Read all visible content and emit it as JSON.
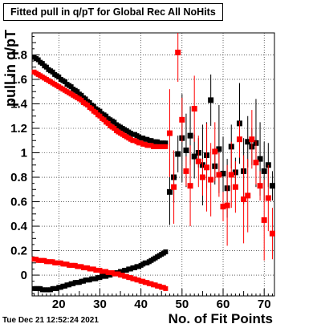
{
  "header": {
    "title": "Fitted pull in q/pT for Global Rec All NoHits",
    "timestamp": "Tue Dec 21 12:52:24 2021"
  },
  "chart_data": {
    "type": "scatter",
    "title": "Fitted pull in q/pT for Global Rec All NoHits",
    "xlabel": "No. of Fit Points",
    "ylabel": "pull in q/pT",
    "xlim": [
      13.5,
      72.5
    ],
    "ylim": [
      -0.17,
      1.98
    ],
    "x_ticks": [
      20,
      30,
      40,
      50,
      60,
      70
    ],
    "y_ticks": [
      0,
      0.2,
      0.4,
      0.6,
      0.8,
      1,
      1.2,
      1.4,
      1.6,
      1.8
    ],
    "y_tick_labels": [
      "0",
      "0.2",
      "0.4",
      "0.6",
      "0.8",
      "1",
      "1.2",
      "1.4",
      "1.6",
      "1.8"
    ],
    "grid": true,
    "series": [
      {
        "color": "#000000",
        "marker": "square",
        "points": [
          [
            14,
            1.78
          ],
          [
            14.5,
            1.77
          ],
          [
            15,
            1.76
          ],
          [
            15.5,
            1.74
          ],
          [
            16,
            1.73
          ],
          [
            16.5,
            1.71
          ],
          [
            17,
            1.7
          ],
          [
            17.5,
            1.68
          ],
          [
            18,
            1.67
          ],
          [
            18.5,
            1.66
          ],
          [
            19,
            1.64
          ],
          [
            19.5,
            1.63
          ],
          [
            20,
            1.62
          ],
          [
            20.5,
            1.6
          ],
          [
            21,
            1.59
          ],
          [
            21.5,
            1.58
          ],
          [
            22,
            1.56
          ],
          [
            22.5,
            1.55
          ],
          [
            23,
            1.54
          ],
          [
            23.5,
            1.52
          ],
          [
            24,
            1.51
          ],
          [
            24.5,
            1.5
          ],
          [
            25,
            1.48
          ],
          [
            25.5,
            1.47
          ],
          [
            26,
            1.45
          ],
          [
            26.5,
            1.44
          ],
          [
            27,
            1.42
          ],
          [
            27.5,
            1.41
          ],
          [
            28,
            1.39
          ],
          [
            28.5,
            1.38
          ],
          [
            29,
            1.36
          ],
          [
            29.5,
            1.35
          ],
          [
            30,
            1.34
          ],
          [
            30.5,
            1.32
          ],
          [
            31,
            1.31
          ],
          [
            31.5,
            1.3
          ],
          [
            32,
            1.28
          ],
          [
            32.5,
            1.27
          ],
          [
            33,
            1.26
          ],
          [
            33.5,
            1.25
          ],
          [
            34,
            1.23
          ],
          [
            34.5,
            1.22
          ],
          [
            35,
            1.21
          ],
          [
            35.5,
            1.2
          ],
          [
            36,
            1.19
          ],
          [
            36.5,
            1.18
          ],
          [
            37,
            1.17
          ],
          [
            37.5,
            1.16
          ],
          [
            38,
            1.15
          ],
          [
            38.5,
            1.15
          ],
          [
            39,
            1.14
          ],
          [
            39.5,
            1.13
          ],
          [
            40,
            1.12
          ],
          [
            40.5,
            1.12
          ],
          [
            41,
            1.11
          ],
          [
            41.5,
            1.11
          ],
          [
            42,
            1.1
          ],
          [
            42.5,
            1.1
          ],
          [
            43,
            1.09
          ],
          [
            43.5,
            1.09
          ],
          [
            44,
            1.09
          ],
          [
            44.5,
            1.08
          ],
          [
            45,
            1.08
          ],
          [
            45.5,
            1.08
          ],
          [
            46,
            1.08
          ],
          [
            14,
            -0.11
          ],
          [
            14.5,
            -0.11
          ],
          [
            15,
            -0.11
          ],
          [
            15.5,
            -0.11
          ],
          [
            16,
            -0.12
          ],
          [
            16.5,
            -0.12
          ],
          [
            17,
            -0.12
          ],
          [
            17.5,
            -0.12
          ],
          [
            18,
            -0.12
          ],
          [
            18.5,
            -0.11
          ],
          [
            19,
            -0.11
          ],
          [
            19.5,
            -0.11
          ],
          [
            20,
            -0.1
          ],
          [
            20.5,
            -0.1
          ],
          [
            21,
            -0.09
          ],
          [
            21.5,
            -0.09
          ],
          [
            22,
            -0.08
          ],
          [
            22.5,
            -0.08
          ],
          [
            23,
            -0.07
          ],
          [
            23.5,
            -0.07
          ],
          [
            24,
            -0.06
          ],
          [
            24.5,
            -0.06
          ],
          [
            25,
            -0.06
          ],
          [
            25.5,
            -0.05
          ],
          [
            26,
            -0.05
          ],
          [
            26.5,
            -0.04
          ],
          [
            27,
            -0.04
          ],
          [
            27.5,
            -0.04
          ],
          [
            28,
            -0.03
          ],
          [
            28.5,
            -0.03
          ],
          [
            29,
            -0.03
          ],
          [
            29.5,
            -0.02
          ],
          [
            30,
            -0.02
          ],
          [
            30.5,
            -0.01
          ],
          [
            31,
            -0.01
          ],
          [
            31.5,
            -0.01
          ],
          [
            32,
            0
          ],
          [
            32.5,
            0
          ],
          [
            33,
            0.01
          ],
          [
            33.5,
            0.01
          ],
          [
            34,
            0.02
          ],
          [
            34.5,
            0.02
          ],
          [
            35,
            0.03
          ],
          [
            35.5,
            0.03
          ],
          [
            36,
            0.04
          ],
          [
            36.5,
            0.04
          ],
          [
            37,
            0.05
          ],
          [
            37.5,
            0.05
          ],
          [
            38,
            0.06
          ],
          [
            38.5,
            0.06
          ],
          [
            39,
            0.07
          ],
          [
            39.5,
            0.07
          ],
          [
            40,
            0.08
          ],
          [
            40.5,
            0.09
          ],
          [
            41,
            0.1
          ],
          [
            41.5,
            0.1
          ],
          [
            42,
            0.11
          ],
          [
            42.5,
            0.12
          ],
          [
            43,
            0.13
          ],
          [
            43.5,
            0.14
          ],
          [
            44,
            0.15
          ],
          [
            44.5,
            0.16
          ],
          [
            45,
            0.17
          ],
          [
            45.5,
            0.18
          ],
          [
            46,
            0.19
          ],
          [
            47,
            0.68
          ],
          [
            48,
            0.8
          ],
          [
            49,
            0.99
          ],
          [
            50,
            1.12
          ],
          [
            51,
            1.02
          ],
          [
            52,
            1.14
          ],
          [
            53,
            0.97
          ],
          [
            54,
            1.0
          ],
          [
            55,
            0.9
          ],
          [
            56,
            0.98
          ],
          [
            57,
            1.43
          ],
          [
            58,
            0.89
          ],
          [
            59,
            1.03
          ],
          [
            60,
            0.83
          ],
          [
            61,
            0.71
          ],
          [
            62,
            1.05
          ],
          [
            63,
            0.84
          ],
          [
            64,
            1.24
          ],
          [
            65,
            0.85
          ],
          [
            66,
            1.09
          ],
          [
            67,
            1.05
          ],
          [
            68,
            1.08
          ],
          [
            69,
            0.95
          ],
          [
            70,
            0.85
          ],
          [
            71,
            0.9
          ],
          [
            72,
            0.73
          ]
        ]
      },
      {
        "color": "#ff0000",
        "marker": "square",
        "points": [
          [
            14,
            1.66
          ],
          [
            14.5,
            1.65
          ],
          [
            15,
            1.64
          ],
          [
            15.5,
            1.63
          ],
          [
            16,
            1.62
          ],
          [
            16.5,
            1.61
          ],
          [
            17,
            1.6
          ],
          [
            17.5,
            1.59
          ],
          [
            18,
            1.58
          ],
          [
            18.5,
            1.57
          ],
          [
            19,
            1.56
          ],
          [
            19.5,
            1.55
          ],
          [
            20,
            1.54
          ],
          [
            20.5,
            1.53
          ],
          [
            21,
            1.52
          ],
          [
            21.5,
            1.51
          ],
          [
            22,
            1.5
          ],
          [
            22.5,
            1.49
          ],
          [
            23,
            1.48
          ],
          [
            23.5,
            1.47
          ],
          [
            24,
            1.46
          ],
          [
            24.5,
            1.45
          ],
          [
            25,
            1.44
          ],
          [
            25.5,
            1.43
          ],
          [
            26,
            1.41
          ],
          [
            26.5,
            1.4
          ],
          [
            27,
            1.39
          ],
          [
            27.5,
            1.37
          ],
          [
            28,
            1.36
          ],
          [
            28.5,
            1.34
          ],
          [
            29,
            1.33
          ],
          [
            29.5,
            1.31
          ],
          [
            30,
            1.3
          ],
          [
            30.5,
            1.28
          ],
          [
            31,
            1.27
          ],
          [
            31.5,
            1.25
          ],
          [
            32,
            1.24
          ],
          [
            32.5,
            1.22
          ],
          [
            33,
            1.21
          ],
          [
            33.5,
            1.2
          ],
          [
            34,
            1.18
          ],
          [
            34.5,
            1.17
          ],
          [
            35,
            1.16
          ],
          [
            35.5,
            1.15
          ],
          [
            36,
            1.14
          ],
          [
            36.5,
            1.13
          ],
          [
            37,
            1.12
          ],
          [
            37.5,
            1.11
          ],
          [
            38,
            1.1
          ],
          [
            38.5,
            1.1
          ],
          [
            39,
            1.09
          ],
          [
            39.5,
            1.08
          ],
          [
            40,
            1.08
          ],
          [
            40.5,
            1.07
          ],
          [
            41,
            1.07
          ],
          [
            41.5,
            1.06
          ],
          [
            42,
            1.06
          ],
          [
            42.5,
            1.06
          ],
          [
            43,
            1.05
          ],
          [
            43.5,
            1.05
          ],
          [
            44,
            1.05
          ],
          [
            44.5,
            1.05
          ],
          [
            45,
            1.05
          ],
          [
            45.5,
            1.05
          ],
          [
            46,
            1.05
          ],
          [
            14,
            0.13
          ],
          [
            14.5,
            0.13
          ],
          [
            15,
            0.12
          ],
          [
            15.5,
            0.12
          ],
          [
            16,
            0.12
          ],
          [
            16.5,
            0.12
          ],
          [
            17,
            0.11
          ],
          [
            17.5,
            0.11
          ],
          [
            18,
            0.11
          ],
          [
            18.5,
            0.11
          ],
          [
            19,
            0.1
          ],
          [
            19.5,
            0.1
          ],
          [
            20,
            0.1
          ],
          [
            20.5,
            0.1
          ],
          [
            21,
            0.09
          ],
          [
            21.5,
            0.09
          ],
          [
            22,
            0.09
          ],
          [
            22.5,
            0.08
          ],
          [
            23,
            0.08
          ],
          [
            23.5,
            0.08
          ],
          [
            24,
            0.08
          ],
          [
            24.5,
            0.07
          ],
          [
            25,
            0.07
          ],
          [
            25.5,
            0.07
          ],
          [
            26,
            0.06
          ],
          [
            26.5,
            0.06
          ],
          [
            27,
            0.06
          ],
          [
            27.5,
            0.05
          ],
          [
            28,
            0.05
          ],
          [
            28.5,
            0.05
          ],
          [
            29,
            0.04
          ],
          [
            29.5,
            0.04
          ],
          [
            30,
            0.04
          ],
          [
            30.5,
            0.03
          ],
          [
            31,
            0.03
          ],
          [
            31.5,
            0.03
          ],
          [
            32,
            0.02
          ],
          [
            32.5,
            0.02
          ],
          [
            33,
            0.02
          ],
          [
            33.5,
            0.01
          ],
          [
            34,
            0.01
          ],
          [
            34.5,
            0.01
          ],
          [
            35,
            0
          ],
          [
            35.5,
            0
          ],
          [
            36,
            -0.01
          ],
          [
            36.5,
            -0.01
          ],
          [
            37,
            -0.02
          ],
          [
            37.5,
            -0.02
          ],
          [
            38,
            -0.03
          ],
          [
            38.5,
            -0.03
          ],
          [
            39,
            -0.04
          ],
          [
            39.5,
            -0.04
          ],
          [
            40,
            -0.05
          ],
          [
            40.5,
            -0.05
          ],
          [
            41,
            -0.06
          ],
          [
            41.5,
            -0.06
          ],
          [
            42,
            -0.07
          ],
          [
            42.5,
            -0.07
          ],
          [
            43,
            -0.08
          ],
          [
            43.5,
            -0.08
          ],
          [
            44,
            -0.09
          ],
          [
            44.5,
            -0.09
          ],
          [
            45,
            -0.1
          ],
          [
            45.5,
            -0.1
          ],
          [
            46,
            -0.11
          ],
          [
            47,
            1.16
          ],
          [
            48,
            0.72
          ],
          [
            49,
            1.82
          ],
          [
            50,
            1.27
          ],
          [
            51,
            0.85
          ],
          [
            52,
            0.73
          ],
          [
            53,
            1.36
          ],
          [
            54,
            0.93
          ],
          [
            55,
            0.8
          ],
          [
            56,
            0.88
          ],
          [
            57,
            0.78
          ],
          [
            58,
            1.01
          ],
          [
            59,
            0.82
          ],
          [
            60,
            0.56
          ],
          [
            61,
            0.57
          ],
          [
            62,
            0.82
          ],
          [
            63,
            0.72
          ],
          [
            64,
            1.11
          ],
          [
            65,
            0.62
          ],
          [
            66,
            0.65
          ],
          [
            67,
            1.11
          ],
          [
            68,
            0.92
          ],
          [
            69,
            0.73
          ],
          [
            70,
            0.45
          ],
          [
            71,
            0.63
          ],
          [
            72,
            0.34
          ]
        ]
      }
    ]
  }
}
